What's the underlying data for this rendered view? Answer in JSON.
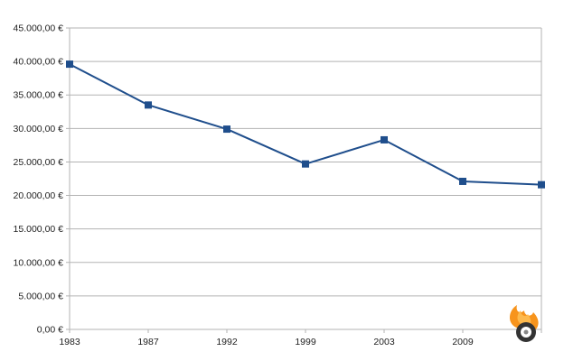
{
  "chart_data": {
    "type": "line",
    "title": "",
    "xlabel": "",
    "ylabel": "",
    "categories": [
      "1983",
      "1987",
      "1992",
      "1999",
      "2003",
      "2009",
      ""
    ],
    "series": [
      {
        "values": [
          39600,
          33500,
          29900,
          24700,
          28300,
          22100,
          21600
        ],
        "color": "#1f4e8c"
      }
    ],
    "ylim": [
      0,
      45000
    ],
    "y_ticks": [
      0,
      5000,
      10000,
      15000,
      20000,
      25000,
      30000,
      35000,
      40000,
      45000
    ],
    "y_tick_labels": [
      "0,00 €",
      "5.000,00 €",
      "10.000,00 €",
      "15.000,00 €",
      "20.000,00 €",
      "25.000,00 €",
      "30.000,00 €",
      "35.000,00 €",
      "40.000,00 €",
      "45.000,00 €"
    ],
    "grid": true,
    "legend": "none",
    "marker": "square"
  },
  "logo": {
    "icon": "tire-flame-logo",
    "colors": [
      "#f7941d",
      "#fdb94d",
      "#333333"
    ]
  }
}
